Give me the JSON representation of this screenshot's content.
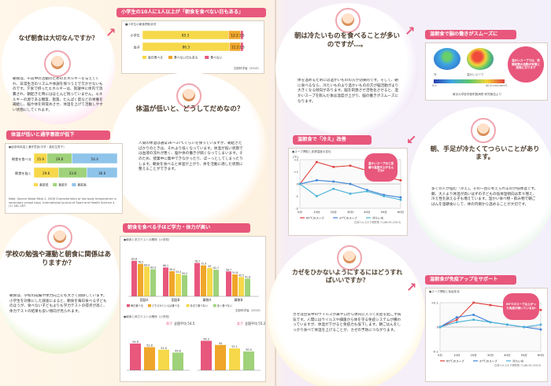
{
  "q1": {
    "title": "なぜ朝食は大切なんですか？",
    "text": "朝食は、午前中の活動のためのエネルギーを与えてくれ、日常生活のリズムや体調を保つうえで欠かせないものです。夕食で摂ったエネルギーは、就寝中に体内で消費され、朝起きた時にはほとんど残っていません。エネルギーの源である糖質、脂質、たんぱく質などの栄養を補給し、脳や体を目覚めさせ、体温を上げて活動しやすい状態にしてくれます。"
  },
  "stat1": {
    "title": "小学生の10人に1人以上が「朝食を食べない日もある」",
    "subtitle": "■小学生の朝食摂取状況",
    "rows": [
      {
        "label": "小学生",
        "values": [
          85.3,
          12.2,
          2.5
        ]
      },
      {
        "label": "女子",
        "values": [
          86.3,
          11.2,
          2.5
        ]
      }
    ],
    "legend": [
      "毎日食べる",
      "食べない日もある",
      "食べない"
    ],
    "axis_max": 100,
    "source": "文部科学省（2010）"
  },
  "q2": {
    "title": "体温が低いと、どうしてだめなの？",
    "text": "人間の体温は通常36〜37℃くらいを保っていますが、朝起きたばかりのときは、それより低くなっています。体温が低い状態では血液の流れが悪く、脳や体の働きが鈍くなってしまいます。そのため、授業中に集中できなかったり、ぼーっとしてしまったりします。朝食を食べると体温が上がり、体を活動に適した状態に整えることができます。"
  },
  "stat2": {
    "title": "体温が低いと通学意欲が低下",
    "subtitle": "●起床時体温と通学意欲(中学・高校生男子)",
    "rows": [
      {
        "label": "朝食を食べる",
        "values": [
          15.9,
          29.8,
          54.4
        ]
      },
      {
        "label": "朝食を抜く",
        "values": [
          29.6,
          33.8,
          36.6
        ]
      }
    ],
    "legend": [
      "意欲低",
      "意欲中",
      "意欲高"
    ],
    "note": "Note, Source Wood Meal.1: 2008 Characteristics of low body temperature in secondary school boys. International journal of Sport and Health Science 4 (1) 161-167."
  },
  "q3": {
    "title": "学校の勉強や運動と朝食に関係はありますか？",
    "text": "朝食は、学校の成績や体力向上にも大きく関係しています。小学生を対象にした調査によると、朝食を毎日食べる子どものほうが、食べない子どもよりも学力テストの得点が高く、体力テストの結果も良い傾向が見られます。"
  },
  "stat3": {
    "title": "朝食を食べる子ほど学力・体力が高い",
    "subtitle": "●朝食と学力テストの関係（小学校）",
    "categories": [
      "国語A",
      "国語B",
      "算数A",
      "算数B"
    ],
    "series_names": [
      "毎日食べる",
      "どちらかといえば食べる",
      "あまり食べない",
      "全く食べない"
    ],
    "values": [
      [
        83.8,
        76.5,
        69.9,
        63.9
      ],
      [
        68.1,
        59.4,
        53.4,
        50.2
      ],
      [
        78.7,
        72.9,
        67.0,
        62.7
      ],
      [
        58.7,
        51.8,
        45.5,
        41.8
      ]
    ],
    "subtitle2": "●朝食と体力テストの関係（小学校）",
    "boys_label": "男子",
    "girls_label": "女子",
    "boys_avg": "全国平均 54.5",
    "girls_avg": "全国平均 55.2",
    "boys_values": [
      54.8,
      52.8,
      51.4,
      49.8
    ],
    "girls_values": [
      56.3,
      54.0,
      52.1,
      50.4
    ],
    "source": "文部科学省（2010）"
  },
  "q4": {
    "title": "朝は冷たいものを食べることが多いのですが…。",
    "text": "体を温めるためには温かいものの方が効果的です。そして、朝に食べるなら、冷たいものより温かいものの方が脳活動がより大きくなる傾向があります。脳を刺激させ活性化させると、温かいスープを飲んだ後は温度が上がり、脳の働きがスムーズになります。"
  },
  "stat4": {
    "title": "温朝食で脳の働きがスムーズに",
    "label_cold": "冷",
    "label_warm": "温かいスープ",
    "callout": "温かいスープでは、前頭前野の活動が非常に活発になります",
    "scale_min": "0.0",
    "scale_max": "40.0 (mV/mm²)",
    "source": "東京大学医学部附属病院 研究報告より"
  },
  "q5": {
    "title": "朝、手足が冷たくてつらいことがあります。",
    "text": "多くの人が悩む「冷え」。その一因に考えられるのが低体温です。朝、大人より体温が高いはずの子どもの低体温傾向は年々増え、冷え性を訴える子も増えています。温かい食べ物・飲み物で朝ごはんを温朝食にして、体の内側から温めることが大切です。"
  },
  "stat5": {
    "title": "温朝食で「冷え」改善",
    "subtitle": "●スープ摂取と皮膚温度の変化",
    "callout": "温かいスープほど皮膚の温度が上がるんだね!",
    "x": [
      "0分",
      "10分",
      "20分",
      "30分",
      "40分",
      "50分",
      "60分"
    ],
    "series": [
      {
        "name": "65℃のスープ",
        "color": "#e0413c",
        "values": [
          0.0,
          1.8,
          1.4,
          1.5,
          1.1,
          0.6,
          0.3
        ]
      },
      {
        "name": "37℃のスープ",
        "color": "#3c82d8",
        "values": [
          0.0,
          0.3,
          0.2,
          0.0,
          -0.5,
          -0.9,
          -1.1
        ]
      },
      {
        "name": "冷たい水",
        "color": "#48b0d8",
        "values": [
          0.0,
          -1.0,
          -0.4,
          -0.8,
          -0.6,
          -1.0,
          -1.3
        ]
      }
    ],
    "y_ticks": [
      "+2",
      "+1",
      "0",
      "-1",
      "-2"
    ],
    "ylabel": "(℃)",
    "source": "日本ヘルスケア研究所 71,88-93 (2013)"
  },
  "q6": {
    "title": "カゼをひかないようにするにはどうすればいいですか？",
    "text": "カゼは空気中のウイルスが鼻や口から体内に入って炎症を起こす病気です。人間にはウイルスや細菌から体を守る免疫システムが備わっていますが、体温が下がると免疫力も低下します。朝ごはんをしっかり食べて体温を上げることが、カゼの予防につながります。"
  },
  "stat6": {
    "title": "温朝食が免疫アップをサポート",
    "subtitle": "●スープ摂取と免疫変化",
    "callout": "65℃のスープは上がった免疫が続いているね!",
    "x": [
      "0分",
      "10分",
      "20分",
      "30分",
      "40分",
      "50分",
      "60分"
    ],
    "series": [
      {
        "name": "65℃のスープ",
        "color": "#e0413c",
        "values": [
          0.0,
          0.03,
          0.1,
          0.09,
          0.08,
          0.08,
          0.07
        ]
      },
      {
        "name": "37℃のスープ",
        "color": "#3c82d8",
        "values": [
          0.0,
          0.04,
          0.05,
          0.02,
          0.01,
          0.0,
          -0.01
        ]
      },
      {
        "name": "冷たい水",
        "color": "#48b0d8",
        "values": [
          0.0,
          0.02,
          0.03,
          0.02,
          0.01,
          0.0,
          0.01
        ]
      }
    ],
    "y_ticks": [
      "+0.1",
      "0",
      "-0.1"
    ],
    "source": "日本ヘルスケア研究所 71,88-93 (2013)"
  }
}
